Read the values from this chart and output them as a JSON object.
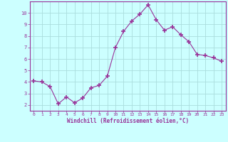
{
  "x": [
    0,
    1,
    2,
    3,
    4,
    5,
    6,
    7,
    8,
    9,
    10,
    11,
    12,
    13,
    14,
    15,
    16,
    17,
    18,
    19,
    20,
    21,
    22,
    23
  ],
  "y": [
    4.1,
    4.0,
    3.6,
    2.1,
    2.7,
    2.2,
    2.6,
    3.5,
    3.7,
    4.5,
    7.0,
    8.4,
    9.3,
    9.9,
    10.7,
    9.4,
    8.5,
    8.8,
    8.1,
    7.5,
    6.4,
    6.3,
    6.1,
    5.8
  ],
  "line_color": "#993399",
  "marker": "+",
  "marker_size": 4,
  "bg_color": "#ccffff",
  "grid_color": "#aadddd",
  "xlabel": "Windchill (Refroidissement éolien,°C)",
  "xlabel_color": "#993399",
  "tick_color": "#993399",
  "axis_color": "#993399",
  "xlim": [
    -0.5,
    23.5
  ],
  "ylim": [
    1.5,
    11.0
  ],
  "yticks": [
    2,
    3,
    4,
    5,
    6,
    7,
    8,
    9,
    10
  ],
  "xticks": [
    0,
    1,
    2,
    3,
    4,
    5,
    6,
    7,
    8,
    9,
    10,
    11,
    12,
    13,
    14,
    15,
    16,
    17,
    18,
    19,
    20,
    21,
    22,
    23
  ]
}
